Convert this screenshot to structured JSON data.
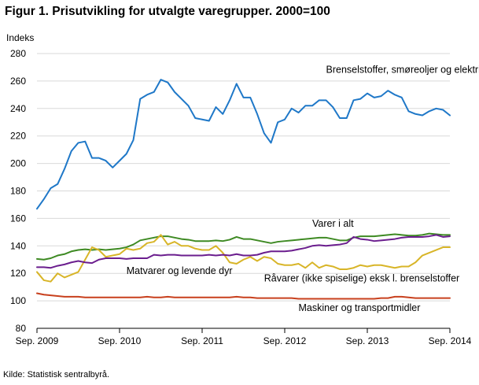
{
  "chart_data": {
    "type": "line",
    "title": "Figur 1. Prisutvikling for utvalgte varegrupper. 2000=100",
    "ylabel": "Indeks",
    "xlabel": "",
    "ylim": [
      80,
      280
    ],
    "yticks": [
      80,
      100,
      120,
      140,
      160,
      180,
      200,
      220,
      240,
      260,
      280
    ],
    "xticks": [
      {
        "index": 0,
        "label": "Sep. 2009"
      },
      {
        "index": 12,
        "label": "Sep. 2010"
      },
      {
        "index": 24,
        "label": "Sep. 2011"
      },
      {
        "index": 36,
        "label": "Sep. 2012"
      },
      {
        "index": 48,
        "label": "Sep. 2013"
      },
      {
        "index": 60,
        "label": "Sep. 2014"
      }
    ],
    "grid": "horizontal",
    "series": [
      {
        "name": "Brenselstoffer,  smøreoljer  og elektrisk strøm",
        "color": "#1f78c8",
        "values": [
          167,
          174,
          182,
          185,
          196,
          209,
          215,
          216,
          204,
          204,
          202,
          197,
          202,
          207,
          217,
          247,
          250,
          252,
          261,
          259,
          252,
          247,
          242,
          233,
          232,
          231,
          241,
          236,
          246,
          258,
          248,
          248,
          236,
          222,
          215,
          230,
          232,
          240,
          237,
          242,
          242,
          246,
          246,
          241,
          233,
          233,
          246,
          247,
          251,
          248,
          249,
          253,
          250,
          248,
          238,
          236,
          235,
          238,
          240,
          239,
          235
        ]
      },
      {
        "name": "Varer i alt",
        "color": "#3e8a23",
        "values": [
          130.5,
          130,
          131,
          133,
          134,
          136,
          137,
          137.5,
          137,
          137.5,
          137,
          137.5,
          138,
          139,
          141,
          144,
          145,
          146,
          147,
          147,
          146,
          145,
          144.5,
          143.5,
          143.5,
          143.5,
          144,
          143.5,
          144.5,
          146.5,
          145,
          145,
          144,
          143,
          142,
          143,
          143.5,
          144,
          144.5,
          145,
          145.5,
          146,
          146,
          145,
          144,
          144,
          146,
          147,
          147,
          147,
          147.5,
          148,
          148.5,
          148,
          147.5,
          147.5,
          148,
          149,
          148.5,
          148,
          148
        ]
      },
      {
        "name": "Matvarer og levende dyr",
        "color": "#d8b528",
        "values": [
          121,
          115,
          114,
          120,
          117,
          119,
          121,
          130,
          139,
          137,
          132,
          133,
          134,
          138,
          137,
          138,
          142,
          143,
          148,
          141,
          143,
          140,
          140,
          138,
          137,
          137,
          140,
          135,
          128,
          127,
          130,
          132,
          129,
          132,
          131,
          127,
          126,
          126,
          127,
          124,
          128,
          124,
          126,
          125,
          123,
          123,
          124,
          126,
          125,
          126,
          126,
          125,
          124,
          125,
          125,
          128,
          133,
          135,
          137,
          139,
          139
        ]
      },
      {
        "name": "Råvarer (ikke spiselige)  eksk l. brenselstoffer",
        "color": "#6b1e8e",
        "values": [
          124.5,
          124.5,
          124,
          125.5,
          126.5,
          128,
          129,
          128,
          127.5,
          130,
          131,
          131,
          131,
          130.5,
          131,
          131,
          131,
          133.5,
          133,
          133.5,
          133.5,
          133,
          133,
          133,
          133,
          133.5,
          133,
          133.5,
          133,
          134,
          133,
          133,
          133.5,
          135,
          136,
          136,
          136,
          136.5,
          137.5,
          138.5,
          140,
          140.5,
          140,
          140.5,
          141,
          142,
          146.5,
          145,
          144.5,
          143.5,
          144,
          144.5,
          145,
          146,
          146.5,
          146.5,
          146.5,
          147,
          148,
          146.5,
          147
        ]
      },
      {
        "name": "Maskiner  og transportmidler",
        "color": "#c8401d",
        "values": [
          105.5,
          104.5,
          104,
          103.5,
          103,
          103,
          103,
          102.5,
          102.5,
          102.5,
          102.5,
          102.5,
          102.5,
          102.5,
          102.5,
          102.5,
          103,
          102.5,
          102.5,
          103,
          102.5,
          102.5,
          102.5,
          102.5,
          102.5,
          102.5,
          102.5,
          102.5,
          102.5,
          103,
          102.5,
          102.5,
          102,
          102,
          102,
          102,
          102,
          102,
          101.5,
          101.5,
          101.5,
          101.5,
          101.5,
          101.5,
          101.5,
          101.5,
          101.5,
          101.5,
          101.5,
          101.5,
          102,
          102,
          103,
          103,
          102.5,
          102,
          102,
          102,
          102,
          102,
          102
        ]
      }
    ],
    "annotations": [
      {
        "text": "Brenselstoffer,  smøreoljer  og elektrisk strøm",
        "x": 42,
        "y": 266
      },
      {
        "text": "Varer i alt",
        "x": 40,
        "y": 154
      },
      {
        "text": "Matvarer og levende dyr",
        "x": 13,
        "y": 119.5
      },
      {
        "text": "Råvarer (ikke spiselige)  eksk l. brenselstoffer",
        "x": 33,
        "y": 114
      },
      {
        "text": "Maskiner  og transportmidler",
        "x": 38,
        "y": 92.5
      }
    ],
    "source": "Kilde: Statistisk sentralbyrå."
  }
}
